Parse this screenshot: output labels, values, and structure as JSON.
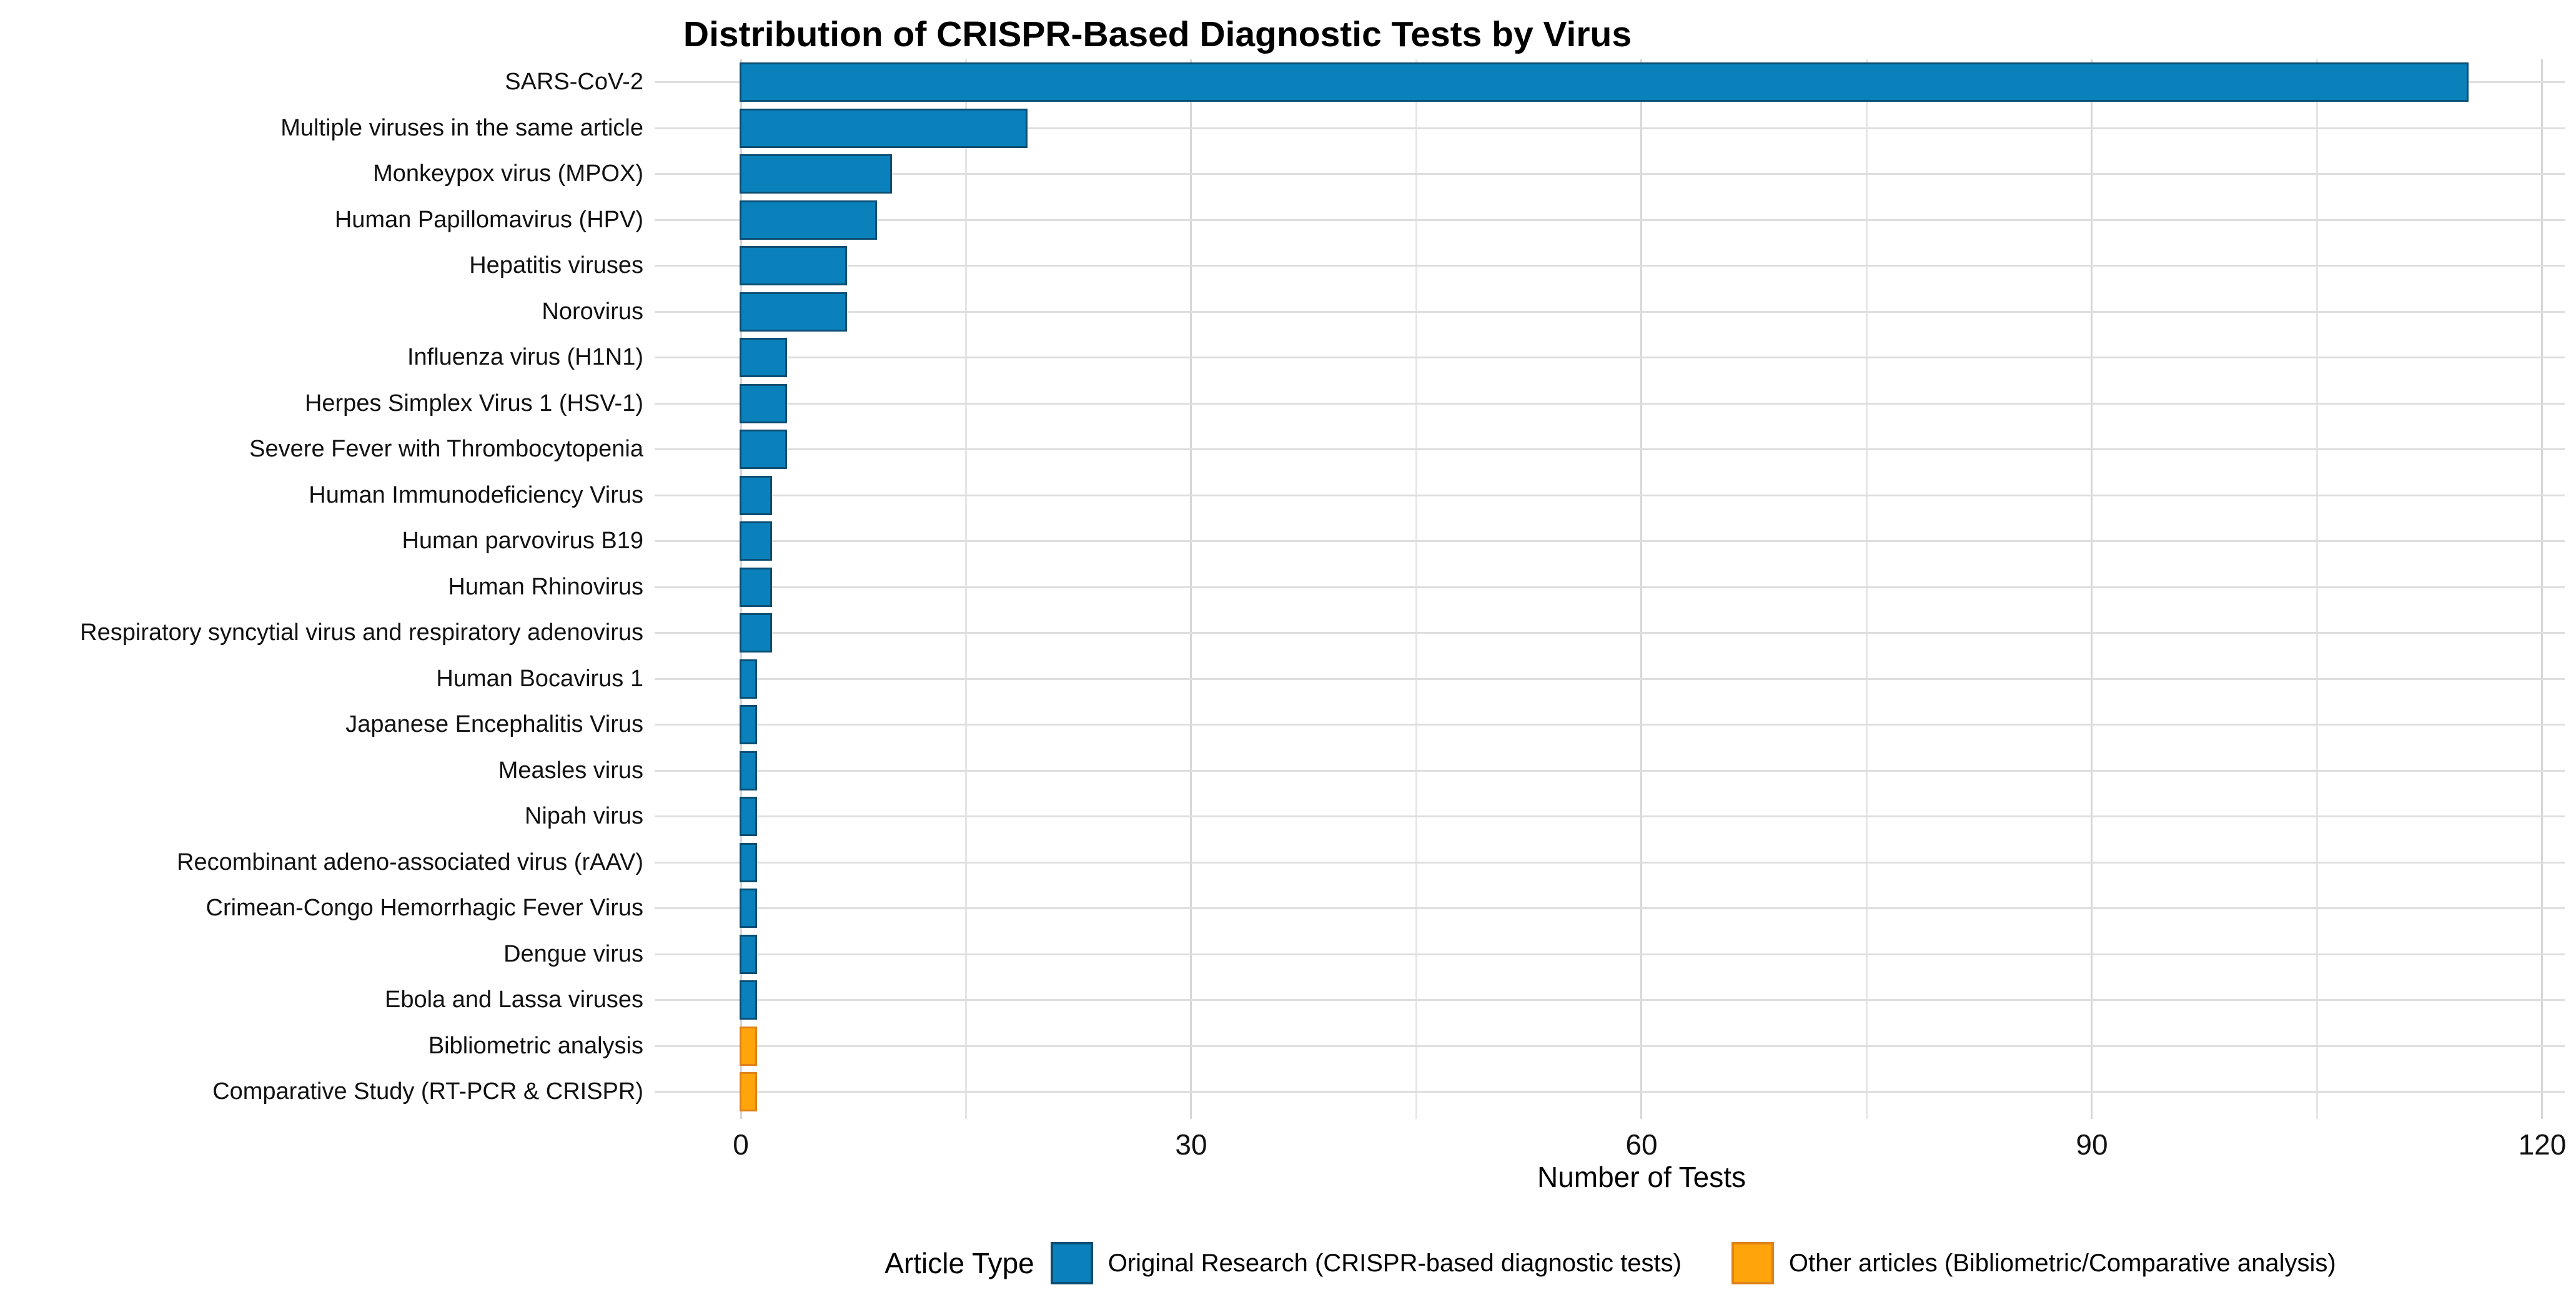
{
  "title": "Distribution of CRISPR-Based Diagnostic Tests by Virus",
  "chart_data": {
    "type": "bar",
    "orientation": "horizontal",
    "title": "Distribution of CRISPR-Based Diagnostic Tests by Virus",
    "xlabel": "Number of Tests",
    "ylabel": "",
    "xlim": [
      0,
      121.5
    ],
    "xticks": [
      0,
      30,
      60,
      90,
      120
    ],
    "minor_xticks": [
      15,
      45,
      75,
      105
    ],
    "grid": true,
    "categories": [
      "SARS-CoV-2",
      "Multiple viruses in the same article",
      "Monkeypox virus (MPOX)",
      "Human Papillomavirus (HPV)",
      "Hepatitis viruses",
      "Norovirus",
      "Influenza virus (H1N1)",
      "Herpes Simplex Virus 1 (HSV-1)",
      "Severe Fever with Thrombocytopenia",
      "Human Immunodeficiency Virus",
      "Human parvovirus B19",
      "Human Rhinovirus",
      "Respiratory syncytial virus and respiratory adenovirus",
      "Human Bocavirus 1",
      "Japanese Encephalitis Virus",
      "Measles virus",
      "Nipah virus",
      "Recombinant adeno-associated virus (rAAV)",
      "Crimean-Congo Hemorrhagic Fever Virus",
      "Dengue virus",
      "Ebola and Lassa viruses",
      "Bibliometric analysis",
      "Comparative Study (RT-PCR & CRISPR)"
    ],
    "values": [
      115,
      19,
      10,
      9,
      7,
      7,
      3,
      3,
      3,
      2,
      2,
      2,
      2,
      1,
      1,
      1,
      1,
      1,
      1,
      1,
      1,
      1,
      1
    ],
    "bar_groups": [
      "original",
      "original",
      "original",
      "original",
      "original",
      "original",
      "original",
      "original",
      "original",
      "original",
      "original",
      "original",
      "original",
      "original",
      "original",
      "original",
      "original",
      "original",
      "original",
      "original",
      "original",
      "other",
      "other"
    ],
    "legend": {
      "title": "Article Type",
      "position": "bottom",
      "entries": [
        {
          "id": "original",
          "label": "Original Research (CRISPR-based diagnostic tests)",
          "fill": "#0A81BA",
          "border": "#0B4E74"
        },
        {
          "id": "other",
          "label": "Other articles (Bibliometric/Comparative analysis)",
          "fill": "#FFA40A",
          "border": "#E0821A"
        }
      ]
    },
    "colors": {
      "grid_major": "#D6D6D6",
      "grid_minor": "#E6E6E6",
      "row_grid": "#DEDEDE",
      "axis_text": "#111111",
      "title_text": "#000000"
    }
  }
}
